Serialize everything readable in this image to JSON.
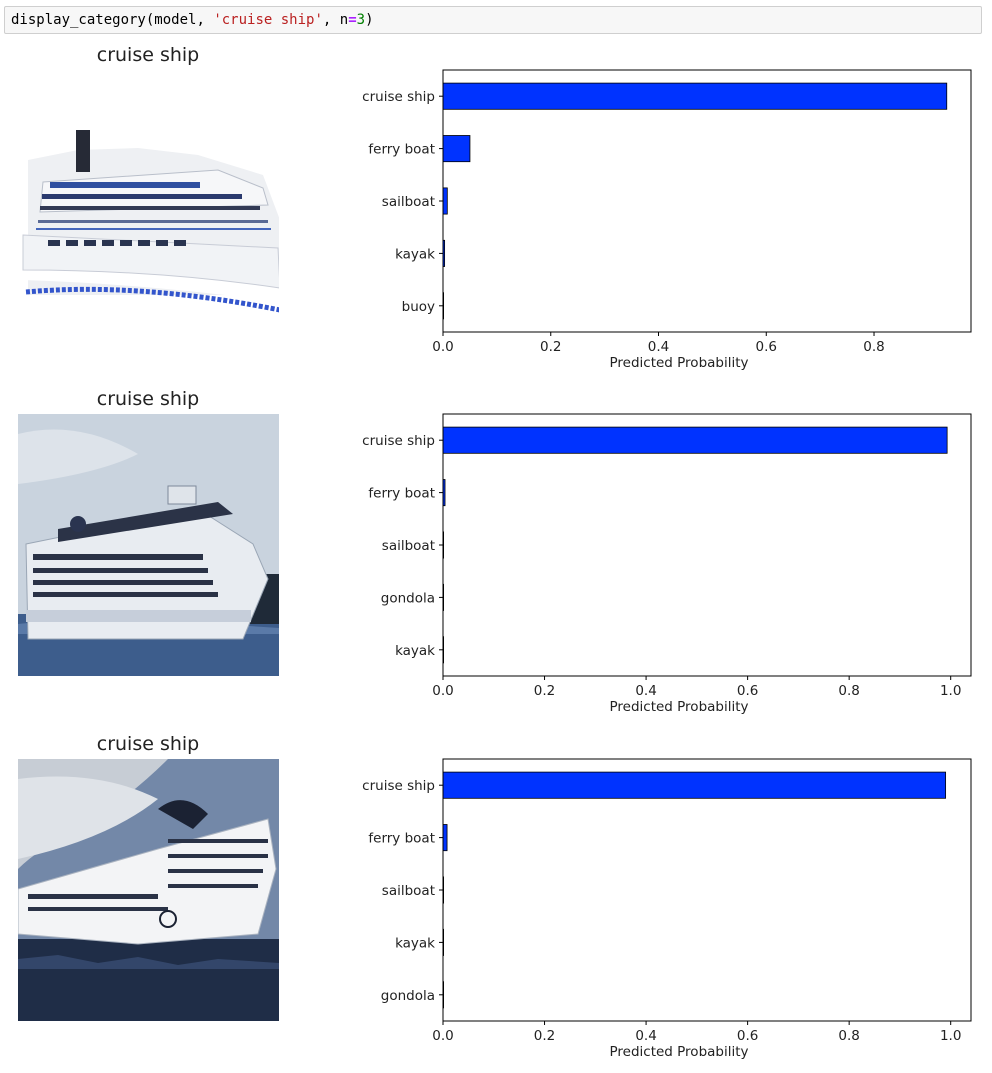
{
  "code": {
    "func": "display_category",
    "arg_model": "model",
    "arg_category": "'cruise ship'",
    "arg_n_key": "n",
    "arg_n_val": "3"
  },
  "colors": {
    "bar": "#0033ff",
    "bar_edge": "#000000",
    "axis": "#000000"
  },
  "chart_data": [
    {
      "type": "bar",
      "orientation": "horizontal",
      "image_title": "cruise ship",
      "categories": [
        "cruise ship",
        "ferry boat",
        "sailboat",
        "kayak",
        "buoy"
      ],
      "values": [
        0.935,
        0.05,
        0.008,
        0.003,
        0.001
      ],
      "xlabel": "Predicted Probability",
      "xticks": [
        "0.0",
        "0.2",
        "0.4",
        "0.6",
        "0.8"
      ],
      "xlim": [
        0,
        0.98
      ]
    },
    {
      "type": "bar",
      "orientation": "horizontal",
      "image_title": "cruise ship",
      "categories": [
        "cruise ship",
        "ferry boat",
        "sailboat",
        "gondola",
        "kayak"
      ],
      "values": [
        0.993,
        0.004,
        0.001,
        0.0005,
        0.0003
      ],
      "xlabel": "Predicted Probability",
      "xticks": [
        "0.0",
        "0.2",
        "0.4",
        "0.6",
        "0.8",
        "1.0"
      ],
      "xlim": [
        0,
        1.04
      ]
    },
    {
      "type": "bar",
      "orientation": "horizontal",
      "image_title": "cruise ship",
      "categories": [
        "cruise ship",
        "ferry boat",
        "sailboat",
        "kayak",
        "gondola"
      ],
      "values": [
        0.99,
        0.008,
        0.001,
        0.0005,
        0.0003
      ],
      "xlabel": "Predicted Probability",
      "xticks": [
        "0.0",
        "0.2",
        "0.4",
        "0.6",
        "0.8",
        "1.0"
      ],
      "xlim": [
        0,
        1.04
      ]
    }
  ]
}
